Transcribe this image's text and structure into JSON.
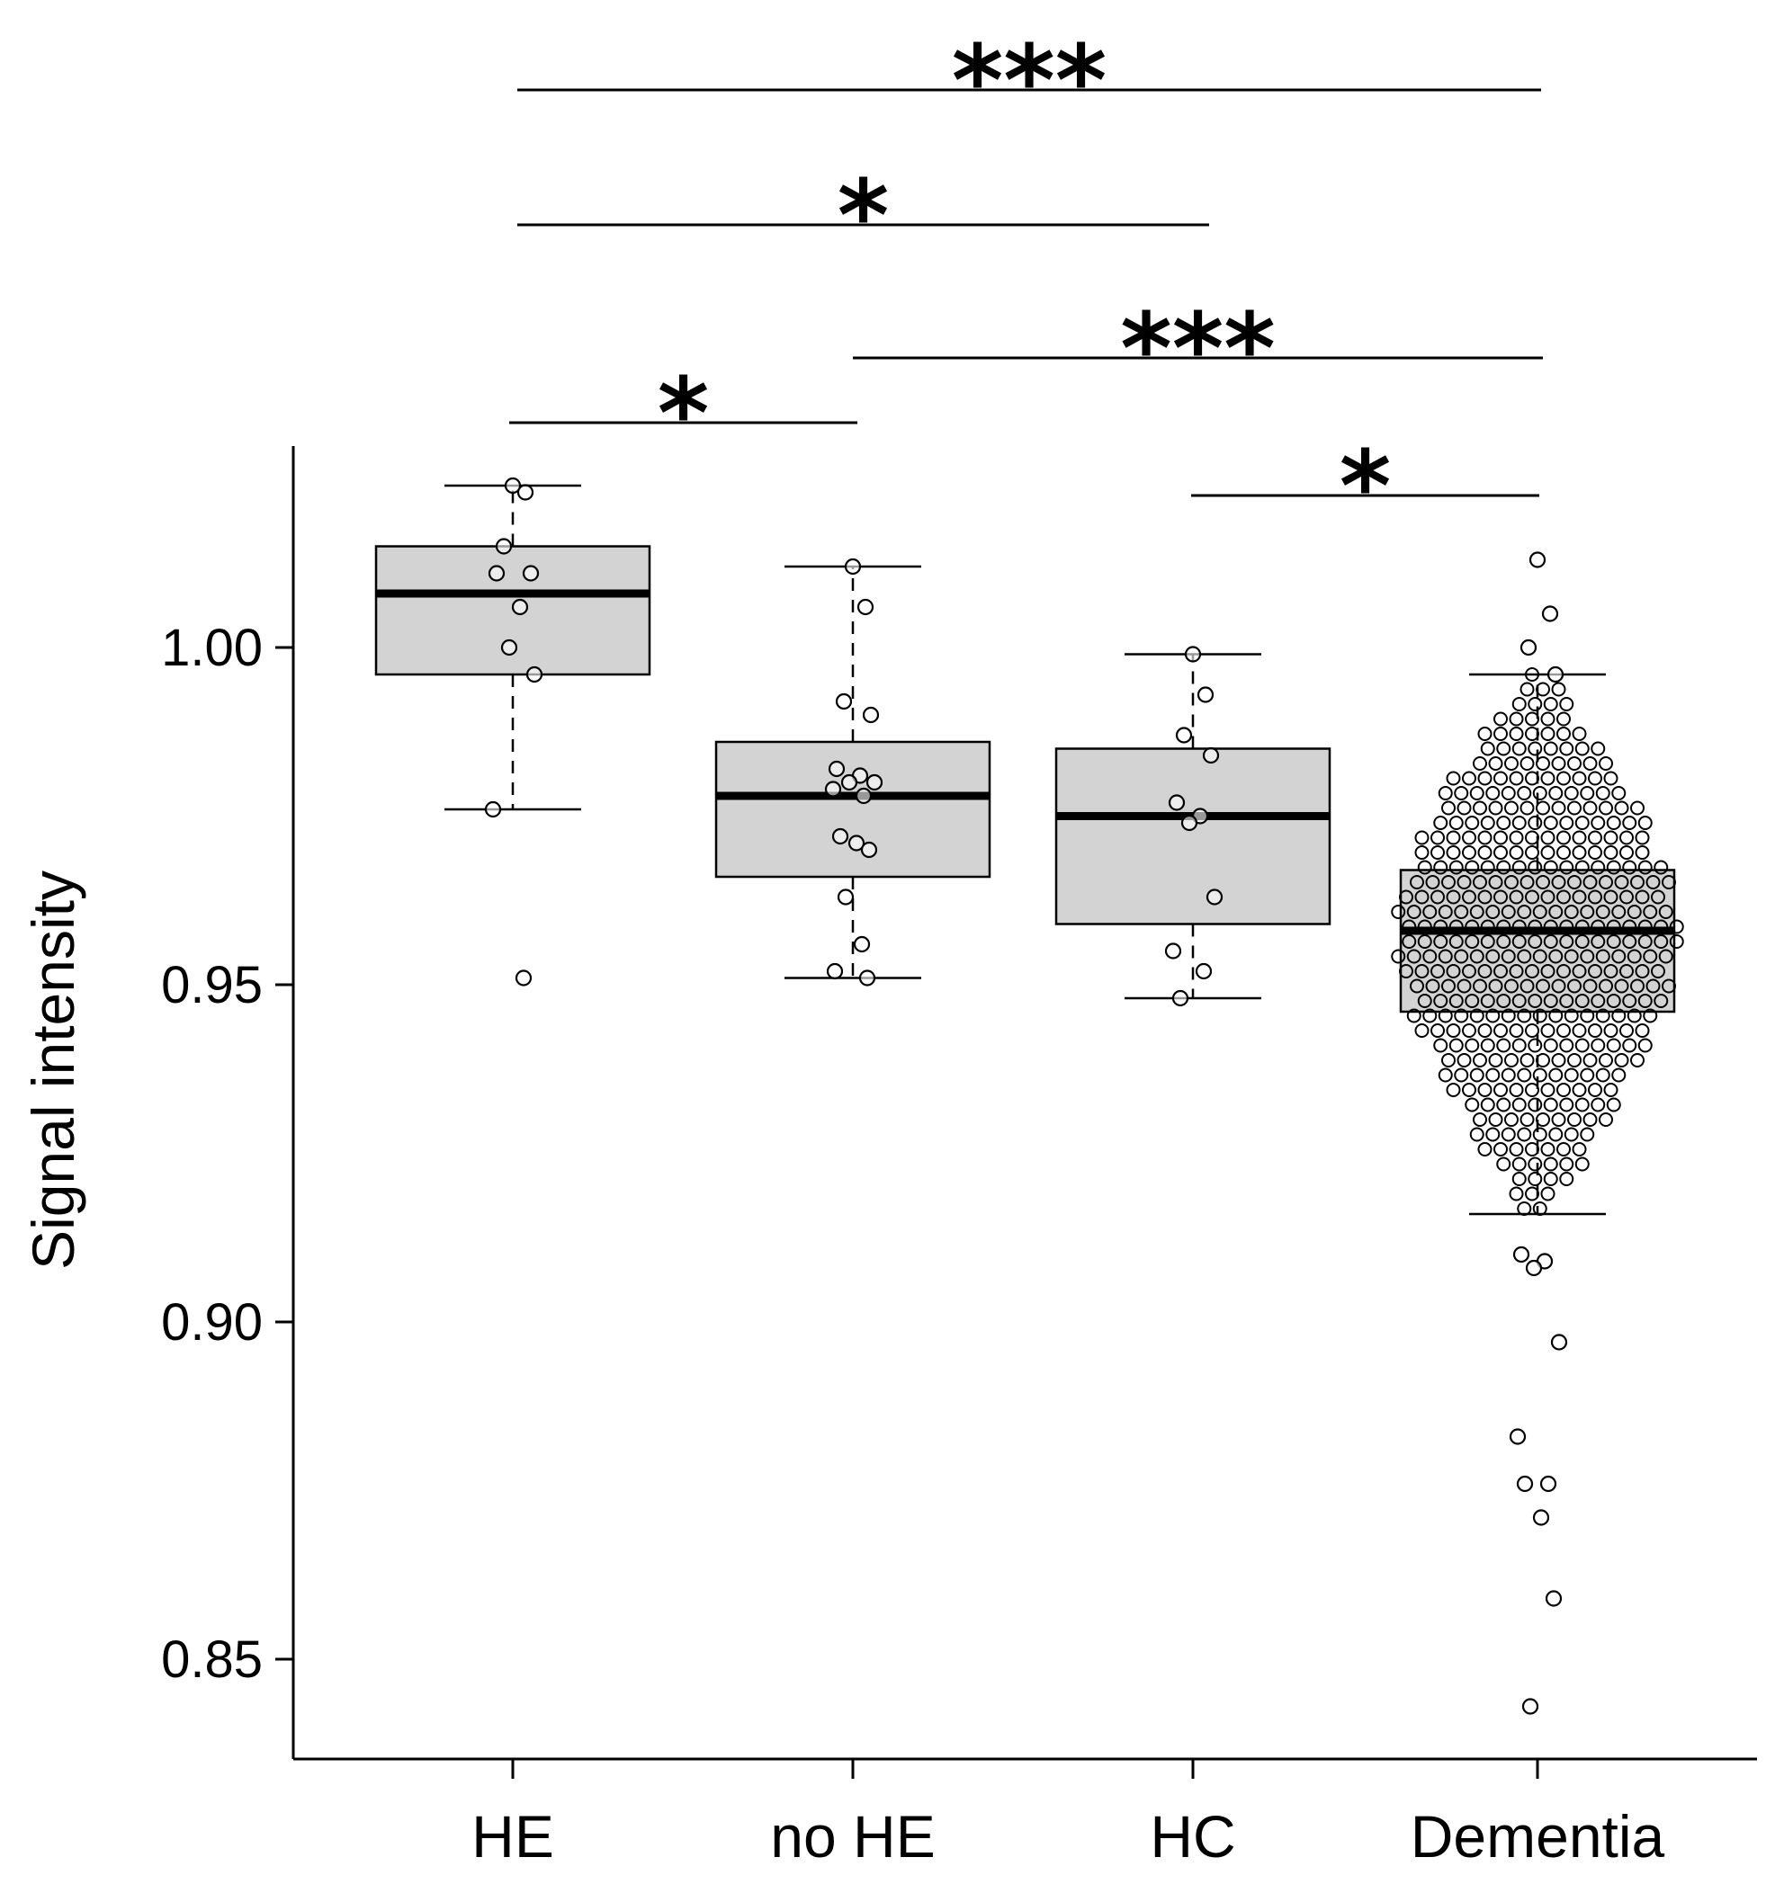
{
  "chart_data": {
    "type": "box",
    "title": "",
    "xlabel": "",
    "ylabel": "Signal intensity",
    "ylim": [
      0.835,
      1.03
    ],
    "yticks": [
      0.85,
      0.9,
      0.95,
      1.0
    ],
    "ytick_labels": [
      "0.85",
      "0.90",
      "0.95",
      "1.00"
    ],
    "categories": [
      "HE",
      "no HE",
      "HC",
      "Dementia"
    ],
    "boxes": [
      {
        "name": "HE",
        "whisker_low": 0.976,
        "q1": 0.996,
        "median": 1.008,
        "q3": 1.015,
        "whisker_high": 1.024,
        "points": [
          1.024,
          1.023,
          1.015,
          1.011,
          1.011,
          1.006,
          1.0,
          0.996,
          0.976,
          0.951
        ]
      },
      {
        "name": "no HE",
        "whisker_low": 0.951,
        "q1": 0.966,
        "median": 0.978,
        "q3": 0.986,
        "whisker_high": 1.012,
        "points": [
          1.012,
          1.006,
          0.992,
          0.99,
          0.982,
          0.981,
          0.98,
          0.98,
          0.979,
          0.978,
          0.972,
          0.971,
          0.97,
          0.963,
          0.956,
          0.952,
          0.951
        ]
      },
      {
        "name": "HC",
        "whisker_low": 0.948,
        "q1": 0.959,
        "median": 0.975,
        "q3": 0.985,
        "whisker_high": 0.999,
        "points": [
          0.999,
          0.993,
          0.987,
          0.984,
          0.977,
          0.975,
          0.974,
          0.963,
          0.955,
          0.952,
          0.948
        ]
      },
      {
        "name": "Dementia",
        "whisker_low": 0.916,
        "q1": 0.946,
        "median": 0.958,
        "q3": 0.967,
        "whisker_high": 0.996,
        "points": [
          1.013,
          1.005,
          1.0,
          0.996,
          0.91,
          0.909,
          0.908,
          0.897,
          0.883,
          0.876,
          0.876,
          0.871,
          0.859,
          0.843
        ]
      }
    ],
    "significance": [
      {
        "from": "HE",
        "to": "Dementia",
        "label": "***"
      },
      {
        "from": "HE",
        "to": "HC",
        "label": "*"
      },
      {
        "from": "no HE",
        "to": "Dementia",
        "label": "***"
      },
      {
        "from": "HE",
        "to": "no HE",
        "label": "*"
      },
      {
        "from": "HC",
        "to": "Dementia",
        "label": "*"
      }
    ]
  }
}
